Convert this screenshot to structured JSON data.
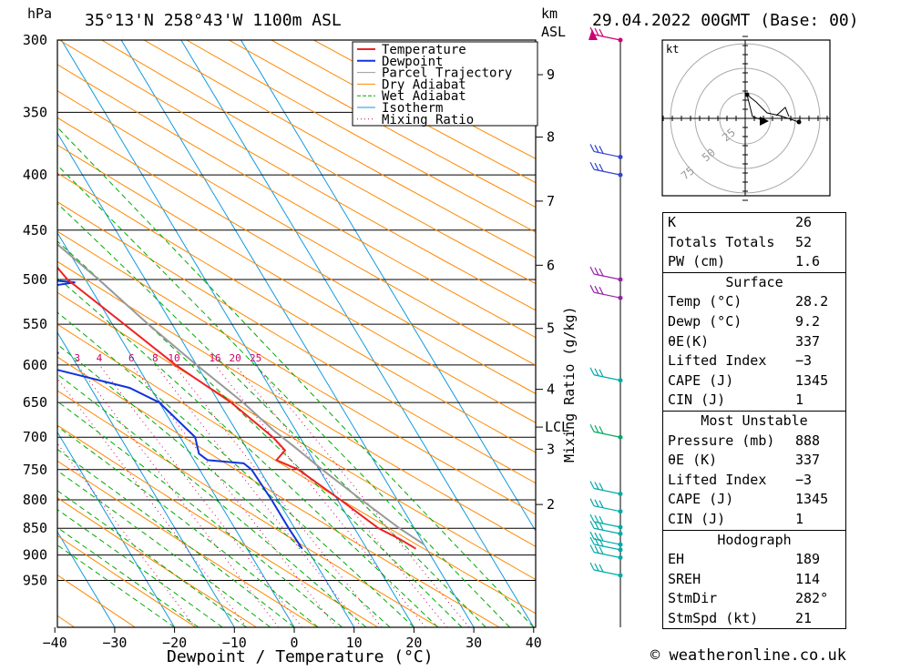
{
  "header": {
    "location": "35°13'N  258°43'W  1100m  ASL",
    "date": "29.04.2022  00GMT  (Base: 00)",
    "hpa_label": "hPa",
    "km_label": "km",
    "asl_label": "ASL"
  },
  "chart_data": {
    "type": "skew-t",
    "xlabel": "Dewpoint / Temperature (°C)",
    "ylabel": "hPa",
    "x_ticks": [
      -40,
      -30,
      -20,
      -10,
      0,
      10,
      20,
      30,
      40
    ],
    "x_tick_labels": [
      "−40",
      "−30",
      "−20",
      "−10",
      "0",
      "10",
      "20",
      "30",
      "40"
    ],
    "pressure_levels": [
      300,
      350,
      400,
      450,
      500,
      550,
      600,
      650,
      700,
      750,
      800,
      850,
      900,
      950
    ],
    "km_ticks": [
      {
        "label": "9",
        "p": 323
      },
      {
        "label": "8",
        "p": 369
      },
      {
        "label": "7",
        "p": 423
      },
      {
        "label": "6",
        "p": 485
      },
      {
        "label": "5",
        "p": 555
      },
      {
        "label": "4",
        "p": 632
      },
      {
        "label": "3",
        "p": 718
      },
      {
        "label": "2",
        "p": 808
      }
    ],
    "lcl": {
      "label": "LCL",
      "p": 685
    },
    "mixing_ratio_title": "Mixing Ratio (g/kg)",
    "mixing_ratio_labels": [
      "1",
      "2",
      "3",
      "4",
      "6",
      "8",
      "10",
      "16",
      "20",
      "25"
    ],
    "legend": [
      {
        "name": "Temperature",
        "color": "#ee2222",
        "style": "solid"
      },
      {
        "name": "Dewpoint",
        "color": "#1133dd",
        "style": "solid"
      },
      {
        "name": "Parcel Trajectory",
        "color": "#999999",
        "style": "solid"
      },
      {
        "name": "Dry Adiabat",
        "color": "#ff8800",
        "style": "solid"
      },
      {
        "name": "Wet Adiabat",
        "color": "#00aa00",
        "style": "dashed"
      },
      {
        "name": "Isotherm",
        "color": "#1199dd",
        "style": "solid"
      },
      {
        "name": "Mixing Ratio",
        "color": "#cc0066",
        "style": "dotted"
      }
    ],
    "series": [
      {
        "name": "Temperature",
        "points": [
          [
            888,
            28.2
          ],
          [
            870,
            26.5
          ],
          [
            850,
            24.0
          ],
          [
            800,
            20.5
          ],
          [
            750,
            16.5
          ],
          [
            735,
            13.8
          ],
          [
            720,
            16.2
          ],
          [
            700,
            15.5
          ],
          [
            650,
            12.0
          ],
          [
            600,
            6.5
          ],
          [
            550,
            2.0
          ],
          [
            500,
            -3.0
          ],
          [
            480,
            -3.8
          ],
          [
            450,
            -7.0
          ],
          [
            400,
            -13.0
          ],
          [
            380,
            -16.0
          ],
          [
            350,
            -19.5
          ],
          [
            300,
            -27.0
          ]
        ]
      },
      {
        "name": "Dewpoint",
        "points": [
          [
            888,
            9.2
          ],
          [
            850,
            9.0
          ],
          [
            800,
            9.0
          ],
          [
            750,
            8.7
          ],
          [
            740,
            8.0
          ],
          [
            735,
            2.3
          ],
          [
            725,
            1.5
          ],
          [
            700,
            2.5
          ],
          [
            650,
            0.0
          ],
          [
            630,
            -3.5
          ],
          [
            600,
            -16.5
          ],
          [
            585,
            -12.0
          ],
          [
            550,
            -15.0
          ],
          [
            520,
            -21.0
          ],
          [
            503,
            -2.0
          ],
          [
            490,
            -25.0
          ],
          [
            450,
            -22.0
          ],
          [
            400,
            -19.0
          ],
          [
            387,
            -4.5
          ],
          [
            380,
            -8.0
          ],
          [
            345,
            -4.0
          ],
          [
            310,
            -12.0
          ],
          [
            300,
            -12.0
          ]
        ]
      },
      {
        "name": "Parcel Trajectory",
        "points": [
          [
            880,
            30.0
          ],
          [
            850,
            27.5
          ],
          [
            800,
            24.0
          ],
          [
            750,
            20.5
          ],
          [
            720,
            18.5
          ],
          [
            690,
            16.3
          ],
          [
            650,
            14.0
          ],
          [
            600,
            10.0
          ],
          [
            550,
            6.0
          ],
          [
            500,
            2.2
          ],
          [
            450,
            -2.5
          ],
          [
            400,
            -8.0
          ],
          [
            350,
            -15.0
          ],
          [
            300,
            -22.5
          ]
        ]
      }
    ]
  },
  "hodograph": {
    "unit_label": "kt",
    "ring_labels": [
      "25",
      "50",
      "75"
    ]
  },
  "indices": {
    "block1": [
      {
        "k": "K",
        "v": "26"
      },
      {
        "k": "Totals Totals",
        "v": "52"
      },
      {
        "k": "PW (cm)",
        "v": "1.6"
      }
    ],
    "surface_title": "Surface",
    "surface": [
      {
        "k": "Temp (°C)",
        "v": "28.2"
      },
      {
        "k": "Dewp (°C)",
        "v": "9.2"
      },
      {
        "k": "θE(K)",
        "v": "337"
      },
      {
        "k": "Lifted Index",
        "v": "−3"
      },
      {
        "k": "CAPE (J)",
        "v": "1345"
      },
      {
        "k": "CIN (J)",
        "v": "1"
      }
    ],
    "mu_title": "Most Unstable",
    "mu": [
      {
        "k": "Pressure (mb)",
        "v": "888"
      },
      {
        "k": "θE (K)",
        "v": "337"
      },
      {
        "k": "Lifted Index",
        "v": "−3"
      },
      {
        "k": "CAPE (J)",
        "v": "1345"
      },
      {
        "k": "CIN (J)",
        "v": "1"
      }
    ],
    "hodo_title": "Hodograph",
    "hodo": [
      {
        "k": "EH",
        "v": "189"
      },
      {
        "k": "SREH",
        "v": "114"
      },
      {
        "k": "StmDir",
        "v": "282°"
      },
      {
        "k": "StmSpd (kt)",
        "v": "21"
      }
    ]
  },
  "copyright": "© weatheronline.co.uk"
}
